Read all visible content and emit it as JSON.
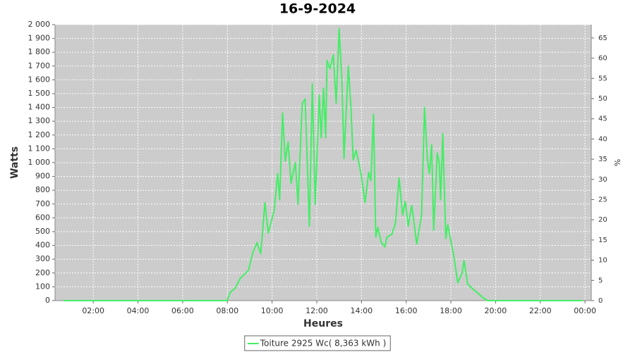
{
  "chart_data": {
    "type": "line",
    "title": "16-9-2024",
    "x_label": "Heures",
    "y_label": "Watts",
    "y2_label": "%",
    "x": [
      0.67,
      7.99,
      8.13,
      8.35,
      8.57,
      8.76,
      8.95,
      9.14,
      9.33,
      9.49,
      9.68,
      9.83,
      9.96,
      10.09,
      10.25,
      10.34,
      10.47,
      10.59,
      10.72,
      10.85,
      11.04,
      11.16,
      11.35,
      11.48,
      11.67,
      11.8,
      11.93,
      12.11,
      12.2,
      12.3,
      12.4,
      12.46,
      12.59,
      12.74,
      12.87,
      13.0,
      13.12,
      13.22,
      13.41,
      13.53,
      13.63,
      13.76,
      13.88,
      14.0,
      14.16,
      14.32,
      14.42,
      14.54,
      14.64,
      14.73,
      14.89,
      15.05,
      15.14,
      15.36,
      15.52,
      15.68,
      15.84,
      15.96,
      16.09,
      16.25,
      16.47,
      16.69,
      16.82,
      16.95,
      17.04,
      17.14,
      17.23,
      17.39,
      17.48,
      17.54,
      17.64,
      17.77,
      17.86,
      17.99,
      18.12,
      18.31,
      18.5,
      18.59,
      18.75,
      18.94,
      19.16,
      19.45,
      19.64,
      23.9
    ],
    "series": [
      {
        "name": "Toiture 2925 Wc( 8,363 kWh )",
        "color": "#44ee66",
        "values": [
          0,
          0,
          60,
          90,
          160,
          190,
          220,
          350,
          420,
          340,
          710,
          490,
          570,
          650,
          920,
          730,
          1360,
          1010,
          1150,
          850,
          1000,
          700,
          1430,
          1460,
          540,
          1570,
          700,
          1490,
          1180,
          1540,
          1180,
          1740,
          1680,
          1780,
          1430,
          1970,
          1600,
          1030,
          1700,
          1400,
          1020,
          1090,
          1000,
          900,
          710,
          930,
          870,
          1350,
          460,
          530,
          420,
          390,
          460,
          480,
          560,
          890,
          620,
          720,
          540,
          690,
          410,
          620,
          1400,
          1020,
          920,
          1130,
          510,
          1070,
          1000,
          730,
          1210,
          450,
          550,
          440,
          330,
          130,
          200,
          290,
          120,
          90,
          60,
          20,
          0,
          0
        ]
      }
    ],
    "xlim": [
      0.29,
      24.28
    ],
    "xticks": [
      {
        "value": 2,
        "label": "02:00"
      },
      {
        "value": 4,
        "label": "04:00"
      },
      {
        "value": 6,
        "label": "06:00"
      },
      {
        "value": 8,
        "label": "08:00"
      },
      {
        "value": 10,
        "label": "10:00"
      },
      {
        "value": 12,
        "label": "12:00"
      },
      {
        "value": 14,
        "label": "14:00"
      },
      {
        "value": 16,
        "label": "16:00"
      },
      {
        "value": 18,
        "label": "18:00"
      },
      {
        "value": 20,
        "label": "20:00"
      },
      {
        "value": 22,
        "label": "22:00"
      },
      {
        "value": 24,
        "label": "00:00"
      }
    ],
    "ylim": [
      0,
      2000
    ],
    "yticks": [
      0,
      100,
      200,
      300,
      400,
      500,
      600,
      700,
      800,
      900,
      {
        "value": 1000,
        "label": "1 000"
      },
      {
        "value": 1100,
        "label": "1 100"
      },
      {
        "value": 1200,
        "label": "1 200"
      },
      {
        "value": 1300,
        "label": "1 300"
      },
      {
        "value": 1400,
        "label": "1 400"
      },
      {
        "value": 1500,
        "label": "1 500"
      },
      {
        "value": 1600,
        "label": "1 600"
      },
      {
        "value": 1700,
        "label": "1 700"
      },
      {
        "value": 1800,
        "label": "1 800"
      },
      {
        "value": 1900,
        "label": "1 900"
      },
      {
        "value": 2000,
        "label": "2 000"
      }
    ],
    "y2lim": [
      0,
      68.3
    ],
    "y2ticks": [
      0,
      5,
      10,
      15,
      20,
      25,
      30,
      35,
      40,
      45,
      50,
      55,
      60,
      65
    ],
    "grid": true,
    "legend": "bottom"
  }
}
